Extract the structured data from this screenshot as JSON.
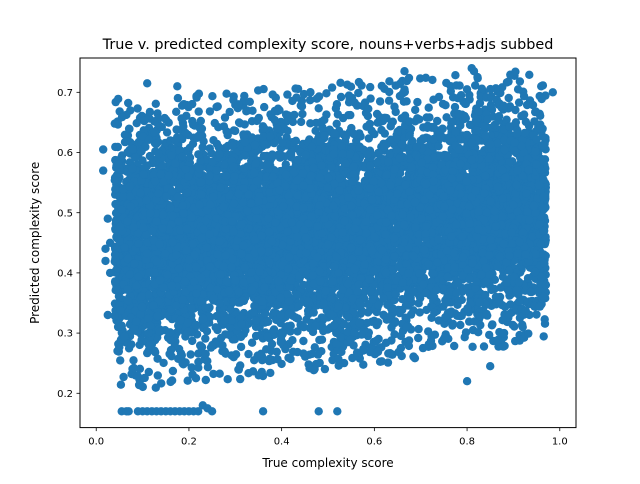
{
  "chart_data": {
    "type": "scatter",
    "title": "True v. predicted complexity score, nouns+verbs+adjs subbed",
    "xlabel": "True complexity score",
    "ylabel": "Predicted complexity score",
    "xlim": [
      -0.035,
      1.035
    ],
    "ylim": [
      0.143,
      0.757
    ],
    "xticks": [
      0.0,
      0.2,
      0.4,
      0.6,
      0.8,
      1.0
    ],
    "xtick_labels": [
      "0.0",
      "0.2",
      "0.4",
      "0.6",
      "0.8",
      "1.0"
    ],
    "yticks": [
      0.2,
      0.3,
      0.4,
      0.5,
      0.6,
      0.7
    ],
    "ytick_labels": [
      "0.2",
      "0.3",
      "0.4",
      "0.5",
      "0.6",
      "0.7"
    ],
    "grid": false,
    "legend": "none",
    "marker_color": "#1f77b4",
    "dense_region": {
      "x_range": [
        0.04,
        0.97
      ],
      "y_range_low_x": [
        0.22,
        0.67
      ],
      "y_range_high_x": [
        0.3,
        0.72
      ],
      "approx_points": 9000
    },
    "outliers": [
      [
        0.015,
        0.605
      ],
      [
        0.015,
        0.57
      ],
      [
        0.02,
        0.44
      ],
      [
        0.02,
        0.42
      ],
      [
        0.025,
        0.49
      ],
      [
        0.025,
        0.33
      ],
      [
        0.03,
        0.45
      ],
      [
        0.03,
        0.4
      ],
      [
        0.04,
        0.648
      ],
      [
        0.055,
        0.17
      ],
      [
        0.065,
        0.17
      ],
      [
        0.07,
        0.17
      ],
      [
        0.09,
        0.17
      ],
      [
        0.1,
        0.17
      ],
      [
        0.11,
        0.17
      ],
      [
        0.12,
        0.17
      ],
      [
        0.13,
        0.17
      ],
      [
        0.14,
        0.17
      ],
      [
        0.15,
        0.17
      ],
      [
        0.16,
        0.17
      ],
      [
        0.17,
        0.17
      ],
      [
        0.18,
        0.17
      ],
      [
        0.19,
        0.17
      ],
      [
        0.2,
        0.17
      ],
      [
        0.21,
        0.17
      ],
      [
        0.22,
        0.17
      ],
      [
        0.23,
        0.18
      ],
      [
        0.24,
        0.175
      ],
      [
        0.25,
        0.17
      ],
      [
        0.11,
        0.715
      ],
      [
        0.175,
        0.71
      ],
      [
        0.36,
        0.17
      ],
      [
        0.48,
        0.17
      ],
      [
        0.52,
        0.17
      ],
      [
        0.8,
        0.22
      ],
      [
        0.85,
        0.245
      ],
      [
        0.88,
        0.3
      ],
      [
        0.92,
        0.31
      ],
      [
        0.665,
        0.735
      ],
      [
        0.81,
        0.74
      ],
      [
        0.815,
        0.735
      ],
      [
        0.91,
        0.705
      ],
      [
        0.96,
        0.71
      ],
      [
        0.985,
        0.7
      ],
      [
        0.97,
        0.38
      ],
      [
        0.965,
        0.36
      ]
    ]
  }
}
